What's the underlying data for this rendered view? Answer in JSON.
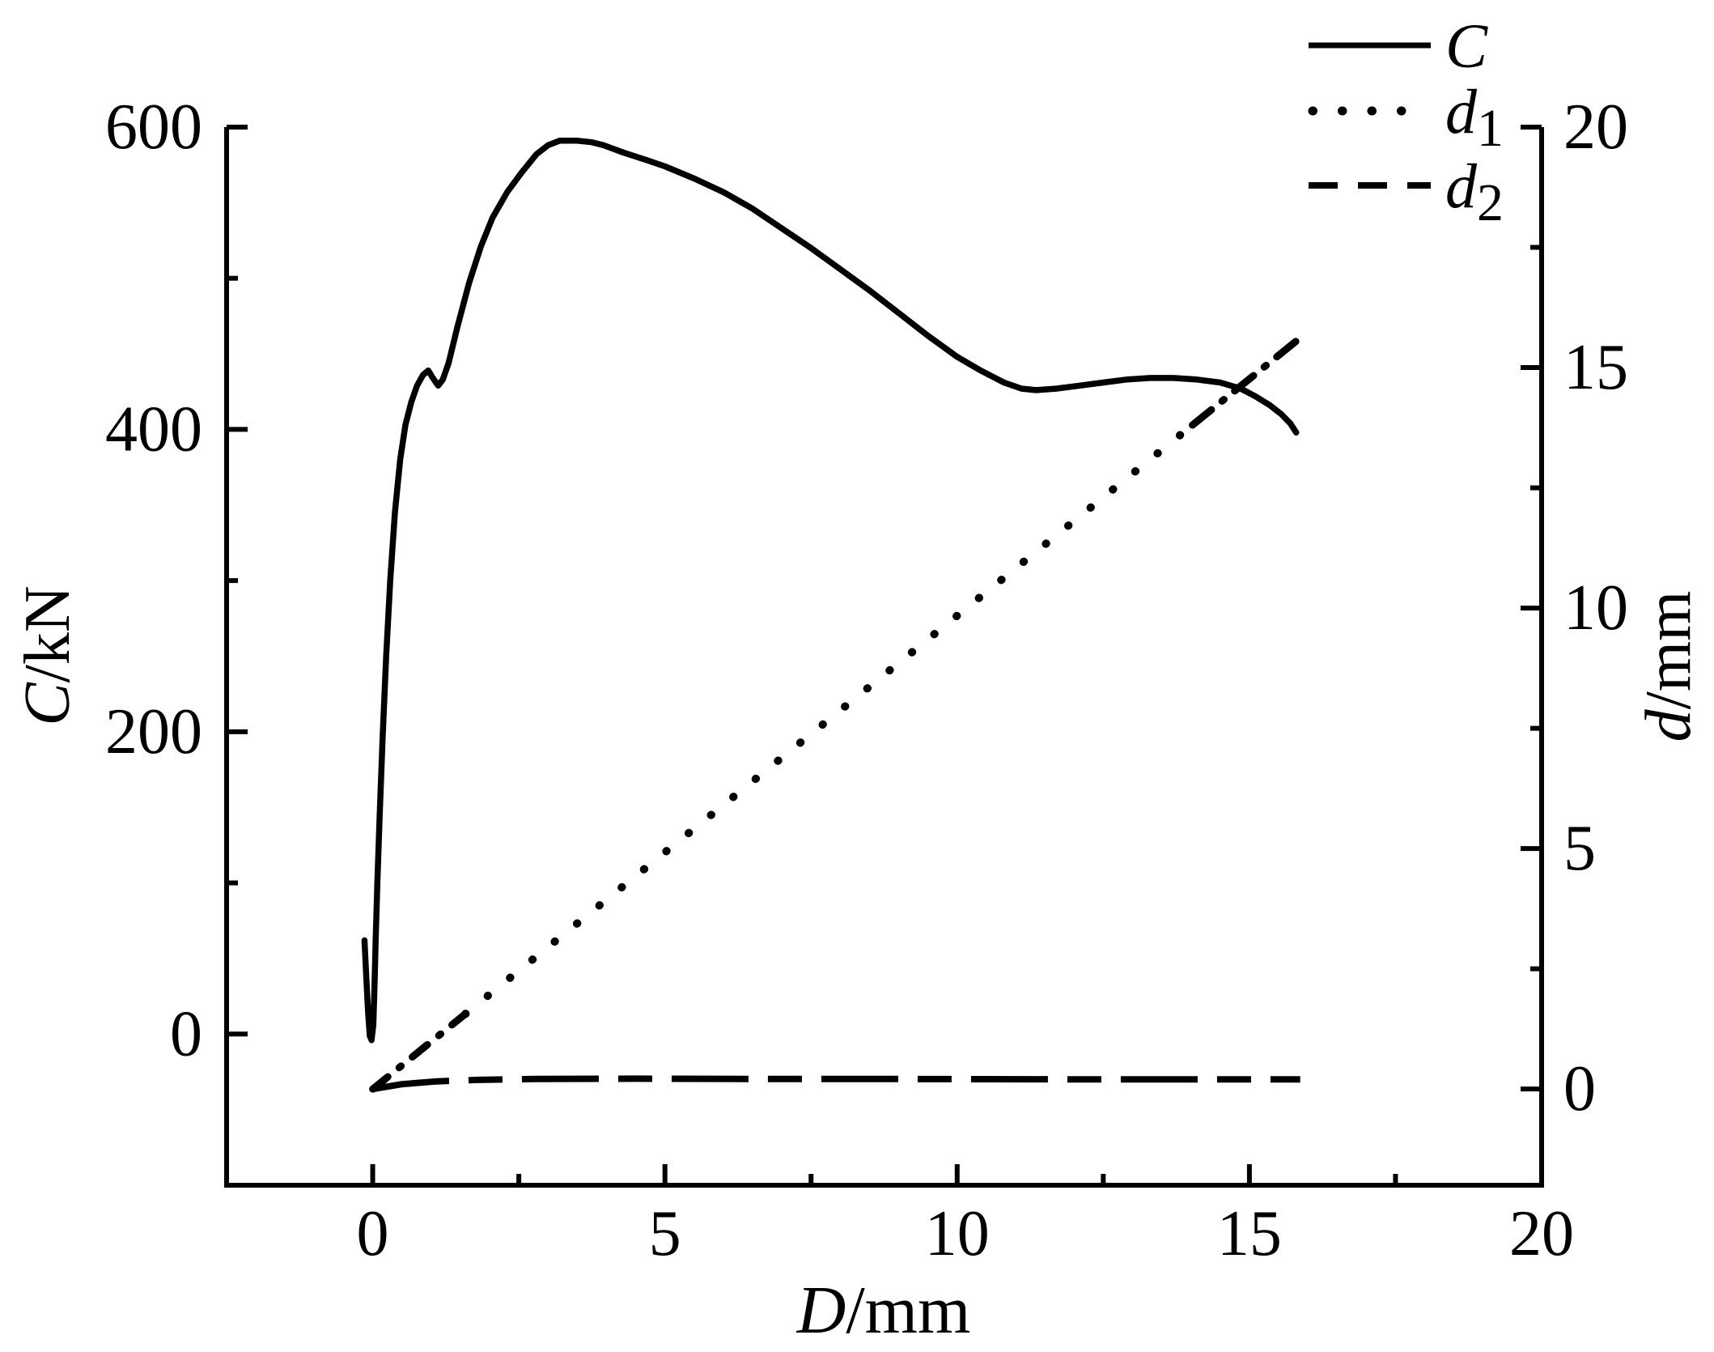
{
  "chart_data": {
    "type": "line",
    "title": "",
    "xlabel": {
      "italic": "D",
      "rest": "/mm"
    },
    "ylabel_left": {
      "italic": "C",
      "rest": "/kN"
    },
    "ylabel_right": {
      "italic": "d",
      "rest": "/mm"
    },
    "xlim": [
      -2.5,
      20
    ],
    "ylim_left": [
      -100,
      600
    ],
    "ylim_right": [
      -2,
      20
    ],
    "x_ticks": [
      0,
      5,
      10,
      15,
      20
    ],
    "x_minor_step": 2.5,
    "left_ticks": [
      0,
      200,
      400,
      600
    ],
    "left_minor_step": 100,
    "right_ticks": [
      0,
      5,
      10,
      15,
      20
    ],
    "right_minor_step": 2.5,
    "grid": false,
    "background_color": "#ffffff",
    "line_color": "#000000",
    "legend": {
      "position": "top-right",
      "entries": [
        {
          "base": "C",
          "sub": "",
          "style": "solid"
        },
        {
          "base": "d",
          "sub": "1",
          "style": "dotted"
        },
        {
          "base": "d",
          "sub": "2",
          "style": "dashed"
        }
      ]
    },
    "series": [
      {
        "name": "C",
        "axis": "left",
        "style": "solid",
        "points": [
          [
            -0.14,
            62
          ],
          [
            -0.11,
            38
          ],
          [
            -0.08,
            15
          ],
          [
            -0.05,
            -1
          ],
          [
            -0.02,
            -4
          ],
          [
            0.01,
            6
          ],
          [
            0.03,
            30
          ],
          [
            0.05,
            62
          ],
          [
            0.08,
            100
          ],
          [
            0.12,
            145
          ],
          [
            0.17,
            196
          ],
          [
            0.23,
            250
          ],
          [
            0.3,
            300
          ],
          [
            0.38,
            345
          ],
          [
            0.47,
            380
          ],
          [
            0.56,
            403
          ],
          [
            0.66,
            418
          ],
          [
            0.76,
            429
          ],
          [
            0.86,
            436
          ],
          [
            0.95,
            439
          ],
          [
            1.03,
            434
          ],
          [
            1.12,
            429
          ],
          [
            1.2,
            433
          ],
          [
            1.3,
            444
          ],
          [
            1.45,
            468
          ],
          [
            1.65,
            497
          ],
          [
            1.85,
            521
          ],
          [
            2.05,
            540
          ],
          [
            2.3,
            557
          ],
          [
            2.55,
            570
          ],
          [
            2.8,
            582
          ],
          [
            3.0,
            588
          ],
          [
            3.2,
            591
          ],
          [
            3.5,
            591
          ],
          [
            3.75,
            590
          ],
          [
            3.95,
            588
          ],
          [
            4.3,
            583
          ],
          [
            4.7,
            578
          ],
          [
            5.0,
            574
          ],
          [
            5.5,
            566
          ],
          [
            6.0,
            557
          ],
          [
            6.5,
            546
          ],
          [
            7.0,
            533
          ],
          [
            7.5,
            520
          ],
          [
            8.0,
            506
          ],
          [
            8.5,
            492
          ],
          [
            9.0,
            477
          ],
          [
            9.5,
            462
          ],
          [
            10.0,
            448
          ],
          [
            10.4,
            439
          ],
          [
            10.8,
            431
          ],
          [
            11.1,
            427
          ],
          [
            11.35,
            426
          ],
          [
            11.7,
            427
          ],
          [
            12.1,
            429
          ],
          [
            12.5,
            431
          ],
          [
            12.9,
            433
          ],
          [
            13.3,
            434
          ],
          [
            13.7,
            434
          ],
          [
            14.1,
            433
          ],
          [
            14.5,
            431
          ],
          [
            14.85,
            427
          ],
          [
            15.1,
            422
          ],
          [
            15.35,
            416
          ],
          [
            15.55,
            410
          ],
          [
            15.7,
            404
          ],
          [
            15.8,
            398
          ]
        ]
      },
      {
        "name": "d1",
        "axis": "right",
        "style": "dotted",
        "points": [
          [
            0,
            0
          ],
          [
            15.85,
            15.6
          ]
        ]
      },
      {
        "name": "d2",
        "axis": "right",
        "style": "dashed",
        "points": [
          [
            0,
            0
          ],
          [
            0.5,
            0.1
          ],
          [
            1.1,
            0.16
          ],
          [
            1.8,
            0.19
          ],
          [
            2.8,
            0.21
          ],
          [
            4.5,
            0.215
          ],
          [
            6.5,
            0.21
          ],
          [
            8.5,
            0.21
          ],
          [
            10.5,
            0.205
          ],
          [
            12.5,
            0.2
          ],
          [
            14,
            0.2
          ],
          [
            15.87,
            0.2
          ]
        ]
      }
    ]
  }
}
